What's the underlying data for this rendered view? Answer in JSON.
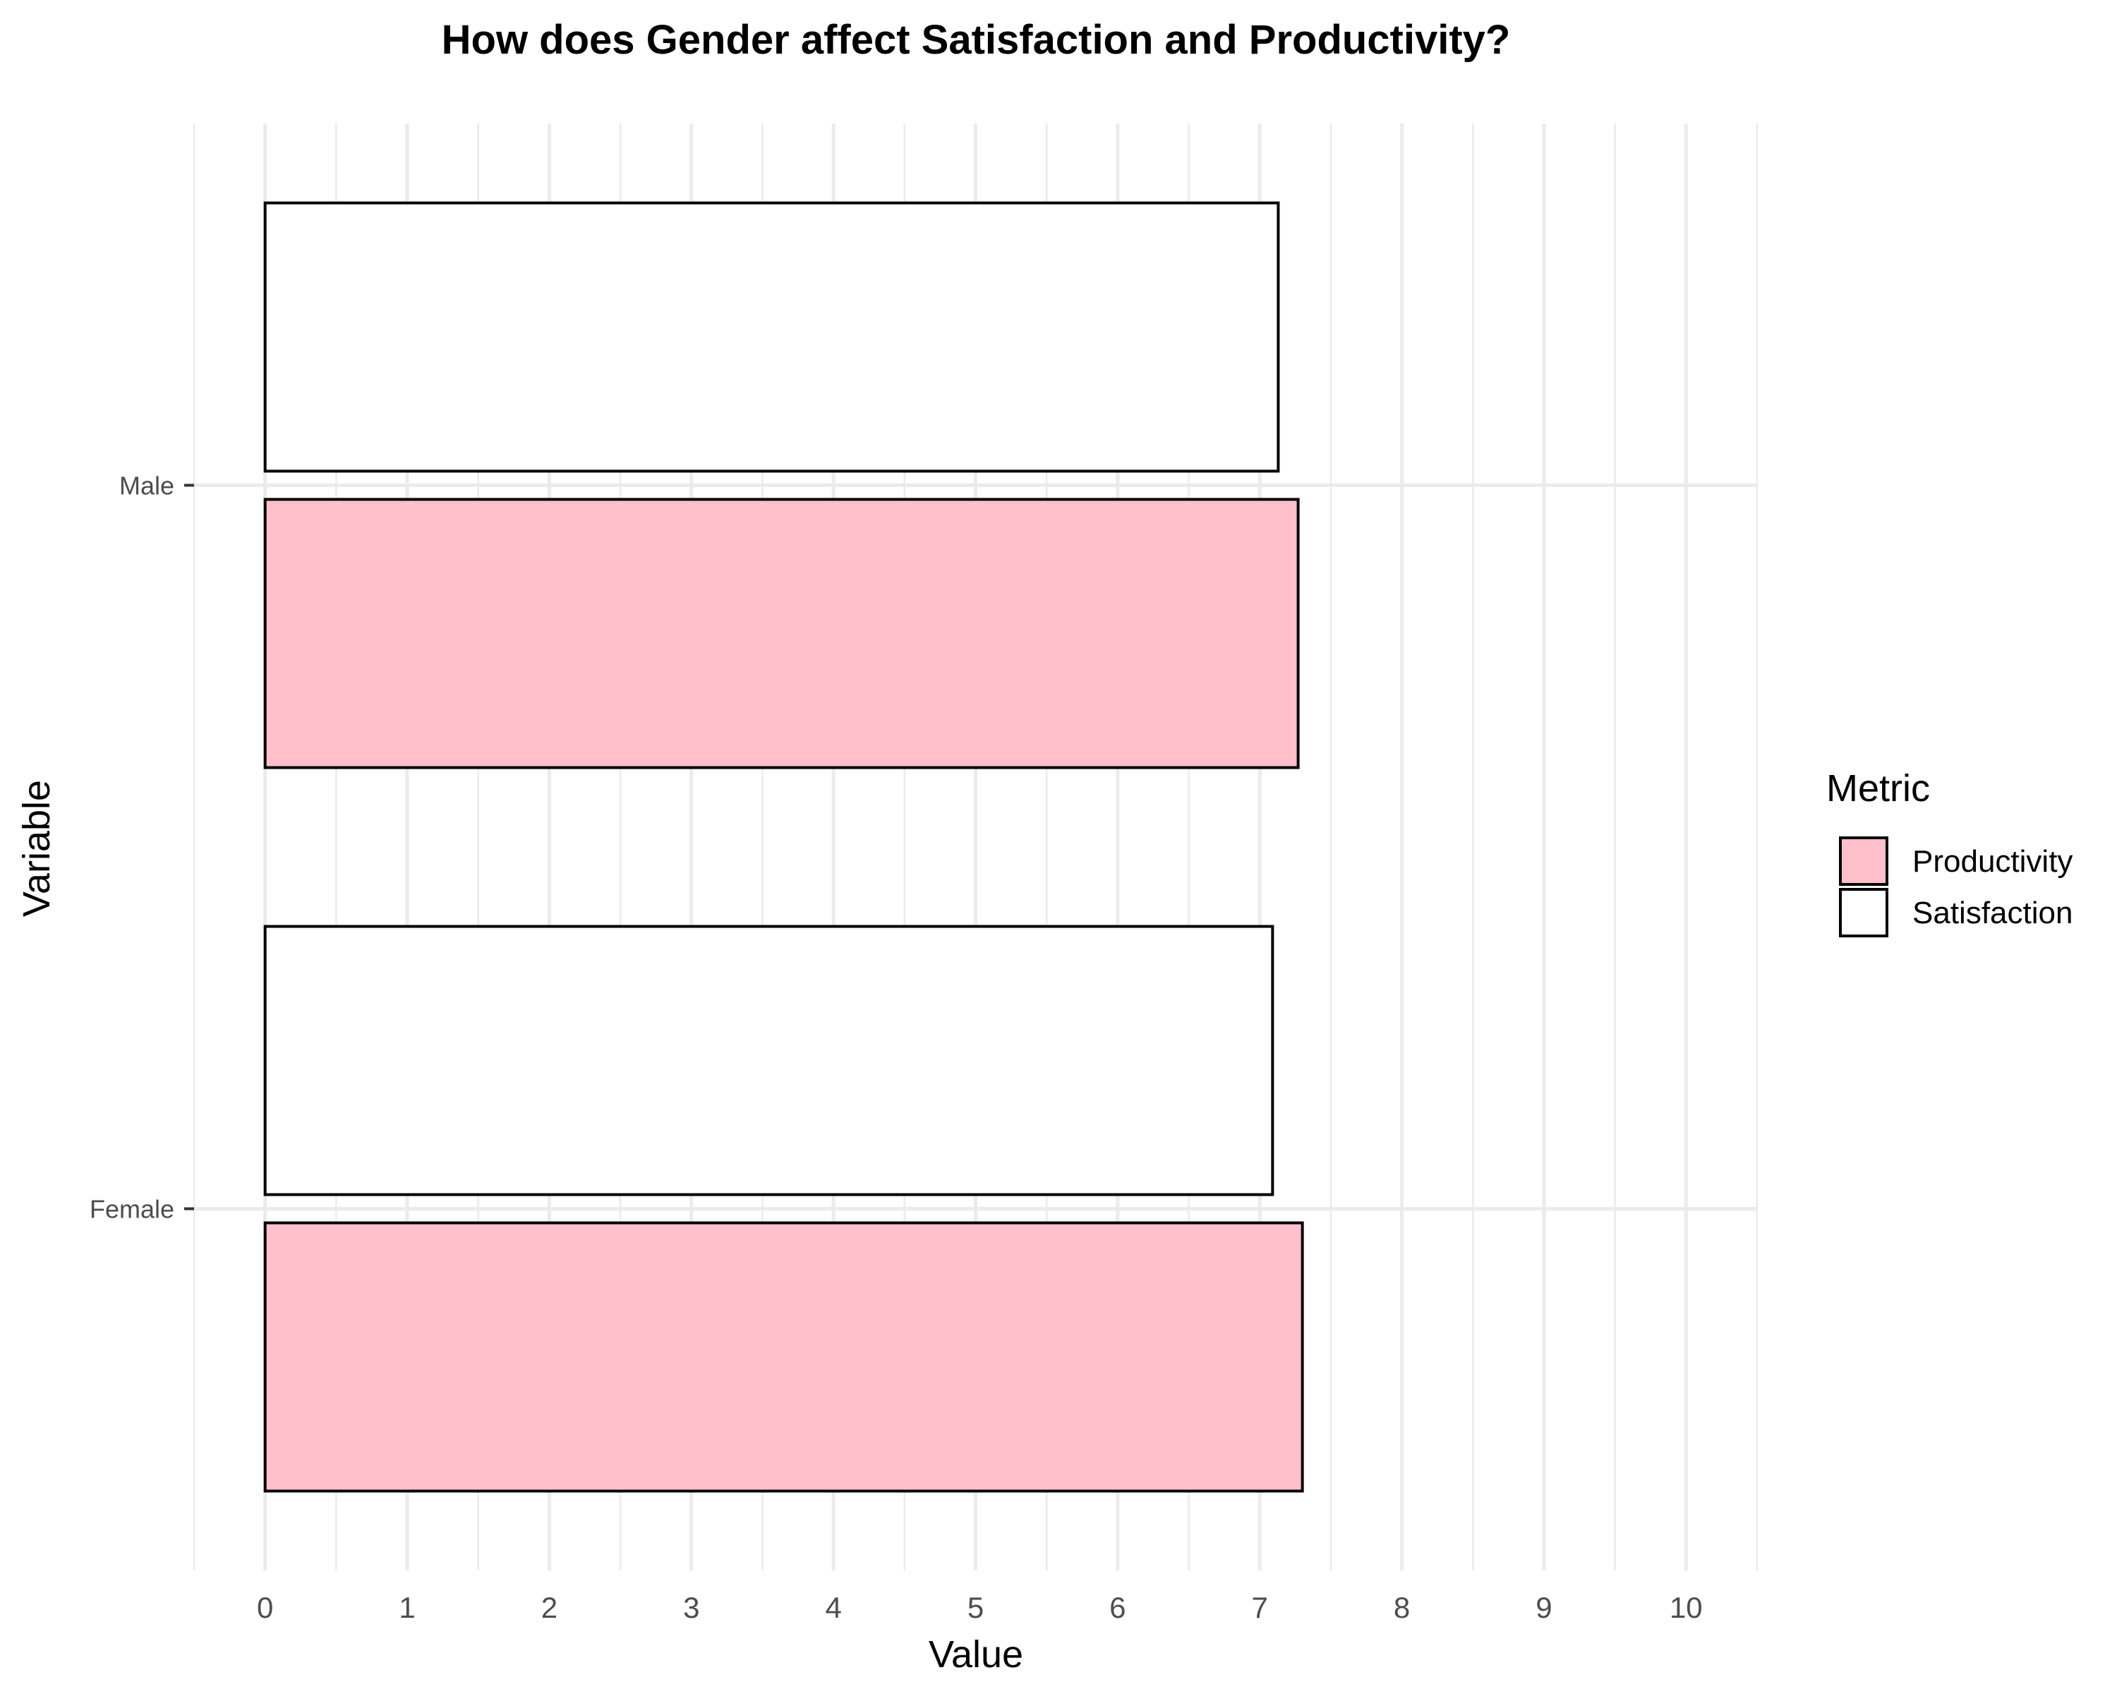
{
  "chart_data": {
    "type": "bar",
    "orientation": "horizontal",
    "title": "How does Gender affect Satisfaction and Productivity?",
    "xlabel": "Value",
    "ylabel": "Variable",
    "categories": [
      "Female",
      "Male"
    ],
    "series": [
      {
        "name": "Productivity",
        "values": [
          7.3,
          7.27
        ],
        "color": "#FFC0CB"
      },
      {
        "name": "Satisfaction",
        "values": [
          7.09,
          7.13
        ],
        "color": "#FFFFFF"
      }
    ],
    "xlim": [
      -0.5,
      10.5
    ],
    "xticks": [
      0,
      1,
      2,
      3,
      4,
      5,
      6,
      7,
      8,
      9,
      10
    ],
    "grid": true,
    "bar_outline_color": "#000000",
    "legend": {
      "title": "Metric",
      "position": "right"
    }
  }
}
